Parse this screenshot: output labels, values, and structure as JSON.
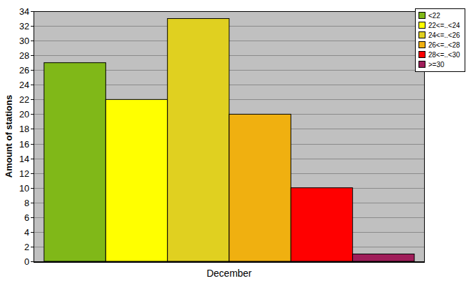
{
  "chart_data": {
    "type": "bar",
    "y_label": "Amount of stations",
    "categories": [
      "December"
    ],
    "series": [
      {
        "name": "<22",
        "color": "#80b818",
        "values": [
          27
        ]
      },
      {
        "name": "22<=..<24",
        "color": "#ffff00",
        "values": [
          22
        ]
      },
      {
        "name": "24<=..<26",
        "color": "#e0d020",
        "values": [
          33
        ]
      },
      {
        "name": "26<=..<28",
        "color": "#f0b010",
        "values": [
          20
        ]
      },
      {
        "name": "28<=..<30",
        "color": "#ff0000",
        "values": [
          10
        ]
      },
      {
        "name": ">=30",
        "color": "#a01e5a",
        "values": [
          1
        ]
      }
    ],
    "ylim": [
      0,
      34
    ],
    "yticks": [
      0,
      2,
      4,
      6,
      8,
      10,
      12,
      14,
      16,
      18,
      20,
      22,
      24,
      26,
      28,
      30,
      32,
      34
    ],
    "grid": true,
    "legend": "top-right"
  }
}
